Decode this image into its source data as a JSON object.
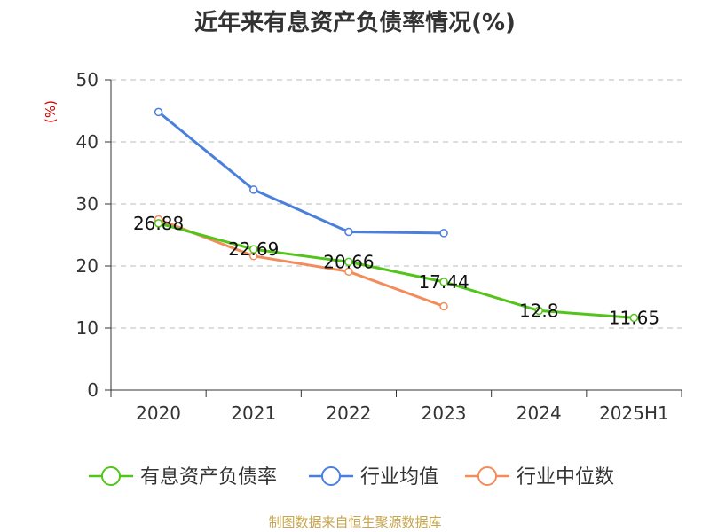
{
  "chart_data": {
    "type": "line",
    "title": "近年来有息资产负债率情况(%)",
    "ylabel": "(%)",
    "categories": [
      "2020",
      "2021",
      "2022",
      "2023",
      "2024",
      "2025H1"
    ],
    "ylim": [
      0,
      50
    ],
    "yticks": [
      0,
      10,
      20,
      30,
      40,
      50
    ],
    "grid": true,
    "legend_position": "bottom",
    "series": [
      {
        "name": "有息资产负债率",
        "color": "#52c41a",
        "values": [
          26.88,
          22.69,
          20.66,
          17.44,
          12.8,
          11.65
        ],
        "labels": [
          "26.88",
          "22.69",
          "20.66",
          "17.44",
          "12.8",
          "11.65"
        ]
      },
      {
        "name": "行业均值",
        "color": "#4a7fdc",
        "values": [
          44.8,
          32.3,
          25.5,
          25.3,
          null,
          null
        ]
      },
      {
        "name": "行业中位数",
        "color": "#f28c5a",
        "values": [
          27.5,
          21.6,
          19.1,
          13.5,
          null,
          null
        ]
      }
    ]
  },
  "source": "制图数据来自恒生聚源数据库"
}
